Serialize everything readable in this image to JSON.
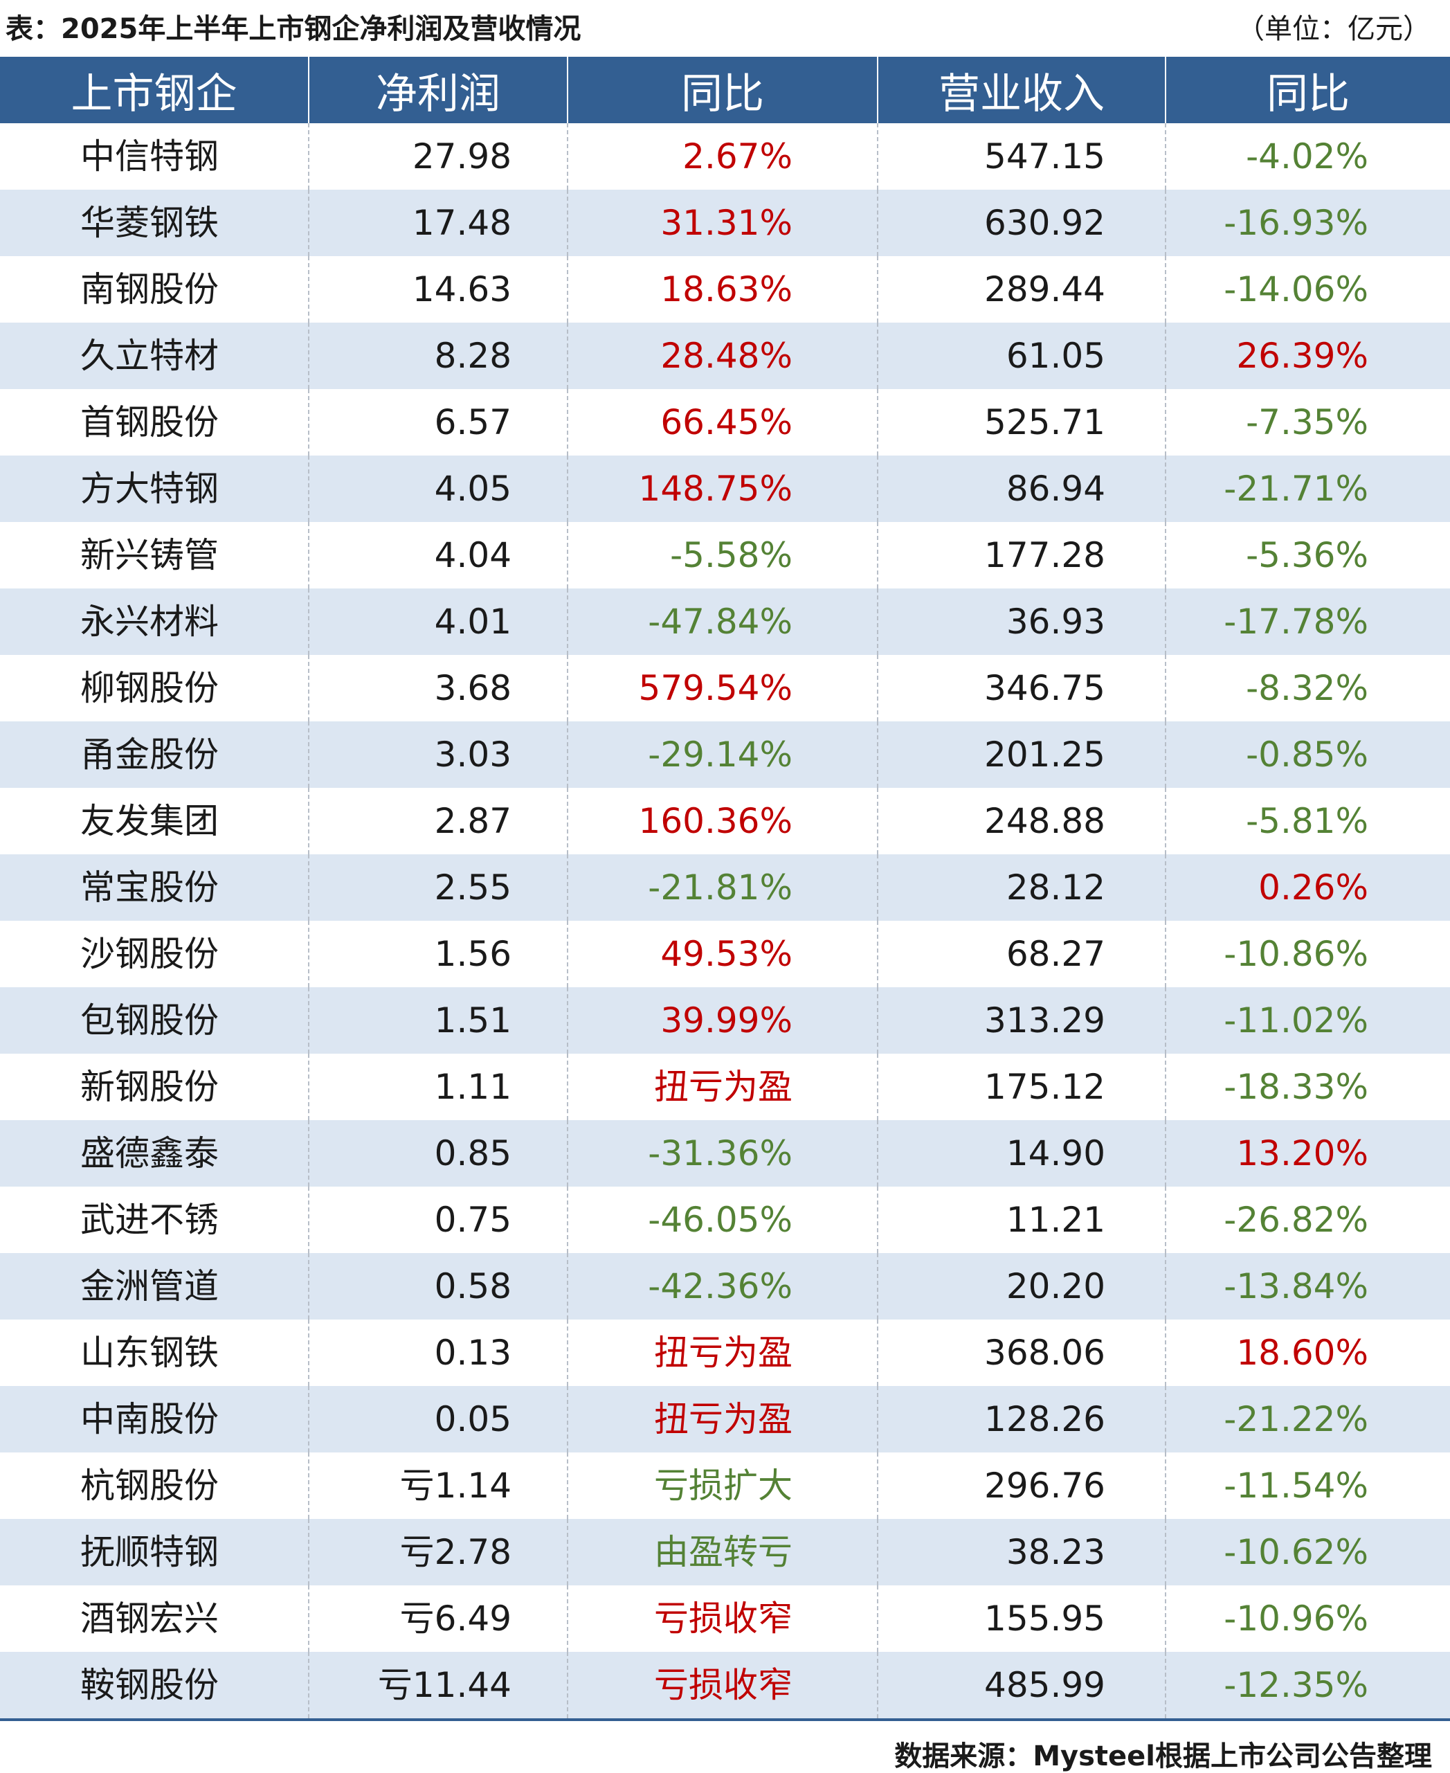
{
  "title": "表：2025年上半年上市钢企净利润及营收情况",
  "unit": "（单位：亿元）",
  "source": "数据来源：Mysteel根据上市公司公告整理",
  "colors": {
    "header_bg": "#335f92",
    "header_text": "#ffffff",
    "stripe_bg": "#dce6f2",
    "positive_text": "#c00000",
    "negative_text": "#548235"
  },
  "table": {
    "headers": [
      "上市钢企",
      "净利润",
      "同比",
      "营业收入",
      "同比"
    ],
    "rows": [
      {
        "company": "中信特钢",
        "net_profit": "27.98",
        "profit_yoy": "2.67%",
        "profit_yoy_dir": "up",
        "revenue": "547.15",
        "revenue_yoy": "-4.02%",
        "revenue_yoy_dir": "down"
      },
      {
        "company": "华菱钢铁",
        "net_profit": "17.48",
        "profit_yoy": "31.31%",
        "profit_yoy_dir": "up",
        "revenue": "630.92",
        "revenue_yoy": "-16.93%",
        "revenue_yoy_dir": "down"
      },
      {
        "company": "南钢股份",
        "net_profit": "14.63",
        "profit_yoy": "18.63%",
        "profit_yoy_dir": "up",
        "revenue": "289.44",
        "revenue_yoy": "-14.06%",
        "revenue_yoy_dir": "down"
      },
      {
        "company": "久立特材",
        "net_profit": "8.28",
        "profit_yoy": "28.48%",
        "profit_yoy_dir": "up",
        "revenue": "61.05",
        "revenue_yoy": "26.39%",
        "revenue_yoy_dir": "up"
      },
      {
        "company": "首钢股份",
        "net_profit": "6.57",
        "profit_yoy": "66.45%",
        "profit_yoy_dir": "up",
        "revenue": "525.71",
        "revenue_yoy": "-7.35%",
        "revenue_yoy_dir": "down"
      },
      {
        "company": "方大特钢",
        "net_profit": "4.05",
        "profit_yoy": "148.75%",
        "profit_yoy_dir": "up",
        "revenue": "86.94",
        "revenue_yoy": "-21.71%",
        "revenue_yoy_dir": "down"
      },
      {
        "company": "新兴铸管",
        "net_profit": "4.04",
        "profit_yoy": "-5.58%",
        "profit_yoy_dir": "down",
        "revenue": "177.28",
        "revenue_yoy": "-5.36%",
        "revenue_yoy_dir": "down"
      },
      {
        "company": "永兴材料",
        "net_profit": "4.01",
        "profit_yoy": "-47.84%",
        "profit_yoy_dir": "down",
        "revenue": "36.93",
        "revenue_yoy": "-17.78%",
        "revenue_yoy_dir": "down"
      },
      {
        "company": "柳钢股份",
        "net_profit": "3.68",
        "profit_yoy": "579.54%",
        "profit_yoy_dir": "up",
        "revenue": "346.75",
        "revenue_yoy": "-8.32%",
        "revenue_yoy_dir": "down"
      },
      {
        "company": "甬金股份",
        "net_profit": "3.03",
        "profit_yoy": "-29.14%",
        "profit_yoy_dir": "down",
        "revenue": "201.25",
        "revenue_yoy": "-0.85%",
        "revenue_yoy_dir": "down"
      },
      {
        "company": "友发集团",
        "net_profit": "2.87",
        "profit_yoy": "160.36%",
        "profit_yoy_dir": "up",
        "revenue": "248.88",
        "revenue_yoy": "-5.81%",
        "revenue_yoy_dir": "down"
      },
      {
        "company": "常宝股份",
        "net_profit": "2.55",
        "profit_yoy": "-21.81%",
        "profit_yoy_dir": "down",
        "revenue": "28.12",
        "revenue_yoy": "0.26%",
        "revenue_yoy_dir": "up"
      },
      {
        "company": "沙钢股份",
        "net_profit": "1.56",
        "profit_yoy": "49.53%",
        "profit_yoy_dir": "up",
        "revenue": "68.27",
        "revenue_yoy": "-10.86%",
        "revenue_yoy_dir": "down"
      },
      {
        "company": "包钢股份",
        "net_profit": "1.51",
        "profit_yoy": "39.99%",
        "profit_yoy_dir": "up",
        "revenue": "313.29",
        "revenue_yoy": "-11.02%",
        "revenue_yoy_dir": "down"
      },
      {
        "company": "新钢股份",
        "net_profit": "1.11",
        "profit_yoy": "扭亏为盈",
        "profit_yoy_dir": "up",
        "revenue": "175.12",
        "revenue_yoy": "-18.33%",
        "revenue_yoy_dir": "down"
      },
      {
        "company": "盛德鑫泰",
        "net_profit": "0.85",
        "profit_yoy": "-31.36%",
        "profit_yoy_dir": "down",
        "revenue": "14.90",
        "revenue_yoy": "13.20%",
        "revenue_yoy_dir": "up"
      },
      {
        "company": "武进不锈",
        "net_profit": "0.75",
        "profit_yoy": "-46.05%",
        "profit_yoy_dir": "down",
        "revenue": "11.21",
        "revenue_yoy": "-26.82%",
        "revenue_yoy_dir": "down"
      },
      {
        "company": "金洲管道",
        "net_profit": "0.58",
        "profit_yoy": "-42.36%",
        "profit_yoy_dir": "down",
        "revenue": "20.20",
        "revenue_yoy": "-13.84%",
        "revenue_yoy_dir": "down"
      },
      {
        "company": "山东钢铁",
        "net_profit": "0.13",
        "profit_yoy": "扭亏为盈",
        "profit_yoy_dir": "up",
        "revenue": "368.06",
        "revenue_yoy": "18.60%",
        "revenue_yoy_dir": "up"
      },
      {
        "company": "中南股份",
        "net_profit": "0.05",
        "profit_yoy": "扭亏为盈",
        "profit_yoy_dir": "up",
        "revenue": "128.26",
        "revenue_yoy": "-21.22%",
        "revenue_yoy_dir": "down"
      },
      {
        "company": "杭钢股份",
        "net_profit": "亏1.14",
        "profit_yoy": "亏损扩大",
        "profit_yoy_dir": "down",
        "revenue": "296.76",
        "revenue_yoy": "-11.54%",
        "revenue_yoy_dir": "down"
      },
      {
        "company": "抚顺特钢",
        "net_profit": "亏2.78",
        "profit_yoy": "由盈转亏",
        "profit_yoy_dir": "down",
        "revenue": "38.23",
        "revenue_yoy": "-10.62%",
        "revenue_yoy_dir": "down"
      },
      {
        "company": "酒钢宏兴",
        "net_profit": "亏6.49",
        "profit_yoy": "亏损收窄",
        "profit_yoy_dir": "up",
        "revenue": "155.95",
        "revenue_yoy": "-10.96%",
        "revenue_yoy_dir": "down"
      },
      {
        "company": "鞍钢股份",
        "net_profit": "亏11.44",
        "profit_yoy": "亏损收窄",
        "profit_yoy_dir": "up",
        "revenue": "485.99",
        "revenue_yoy": "-12.35%",
        "revenue_yoy_dir": "down"
      }
    ]
  }
}
